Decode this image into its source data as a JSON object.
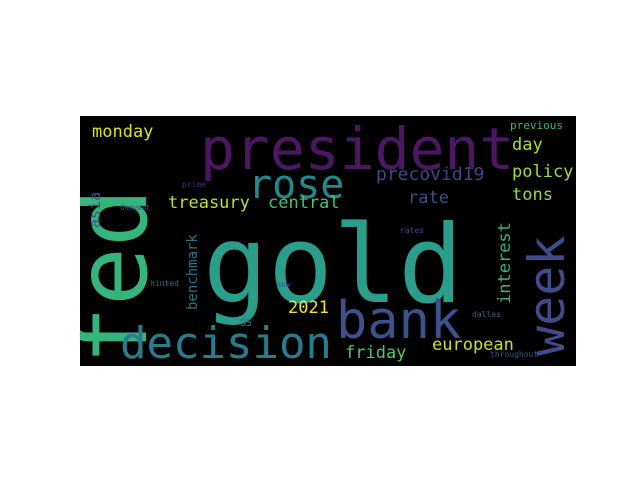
{
  "background_color": "#000000",
  "words": [
    {
      "text": "gold",
      "color": "#2a9d8b"
    },
    {
      "text": "fed",
      "color": "#35b57b"
    },
    {
      "text": "president",
      "color": "#4b1762"
    },
    {
      "text": "bank",
      "color": "#3d528b"
    },
    {
      "text": "week",
      "color": "#3e4c89"
    },
    {
      "text": "decision",
      "color": "#287c8e"
    },
    {
      "text": "rose",
      "color": "#24898d"
    },
    {
      "text": "treasury",
      "color": "#c0de2b"
    },
    {
      "text": "central",
      "color": "#48c16e"
    },
    {
      "text": "precovid19",
      "color": "#3f4788"
    },
    {
      "text": "monday",
      "color": "#dde318"
    },
    {
      "text": "friday",
      "color": "#56c667"
    },
    {
      "text": "european",
      "color": "#cde11d"
    },
    {
      "text": "2021",
      "color": "#f5e41f"
    },
    {
      "text": "interest",
      "color": "#35b779"
    },
    {
      "text": "policy",
      "color": "#a5db36"
    },
    {
      "text": "rate",
      "color": "#3b528b"
    },
    {
      "text": "day",
      "color": "#b2dd2d"
    },
    {
      "text": "tons",
      "color": "#9fda3a"
    },
    {
      "text": "benchmark",
      "color": "#2c738e"
    },
    {
      "text": "asia",
      "color": "#3a548c"
    },
    {
      "text": "previous",
      "color": "#3db86f"
    },
    {
      "text": "prime",
      "color": "#472c7a"
    },
    {
      "text": "demand",
      "color": "#3b518b"
    },
    {
      "text": "hinted",
      "color": "#2b748e"
    },
    {
      "text": "new",
      "color": "#38598c"
    },
    {
      "text": "rates",
      "color": "#3e4c8a"
    },
    {
      "text": "dallas",
      "color": "#33638d"
    },
    {
      "text": "throughout",
      "color": "#365c8d"
    },
    {
      "text": "85",
      "color": "#2a788e"
    }
  ]
}
